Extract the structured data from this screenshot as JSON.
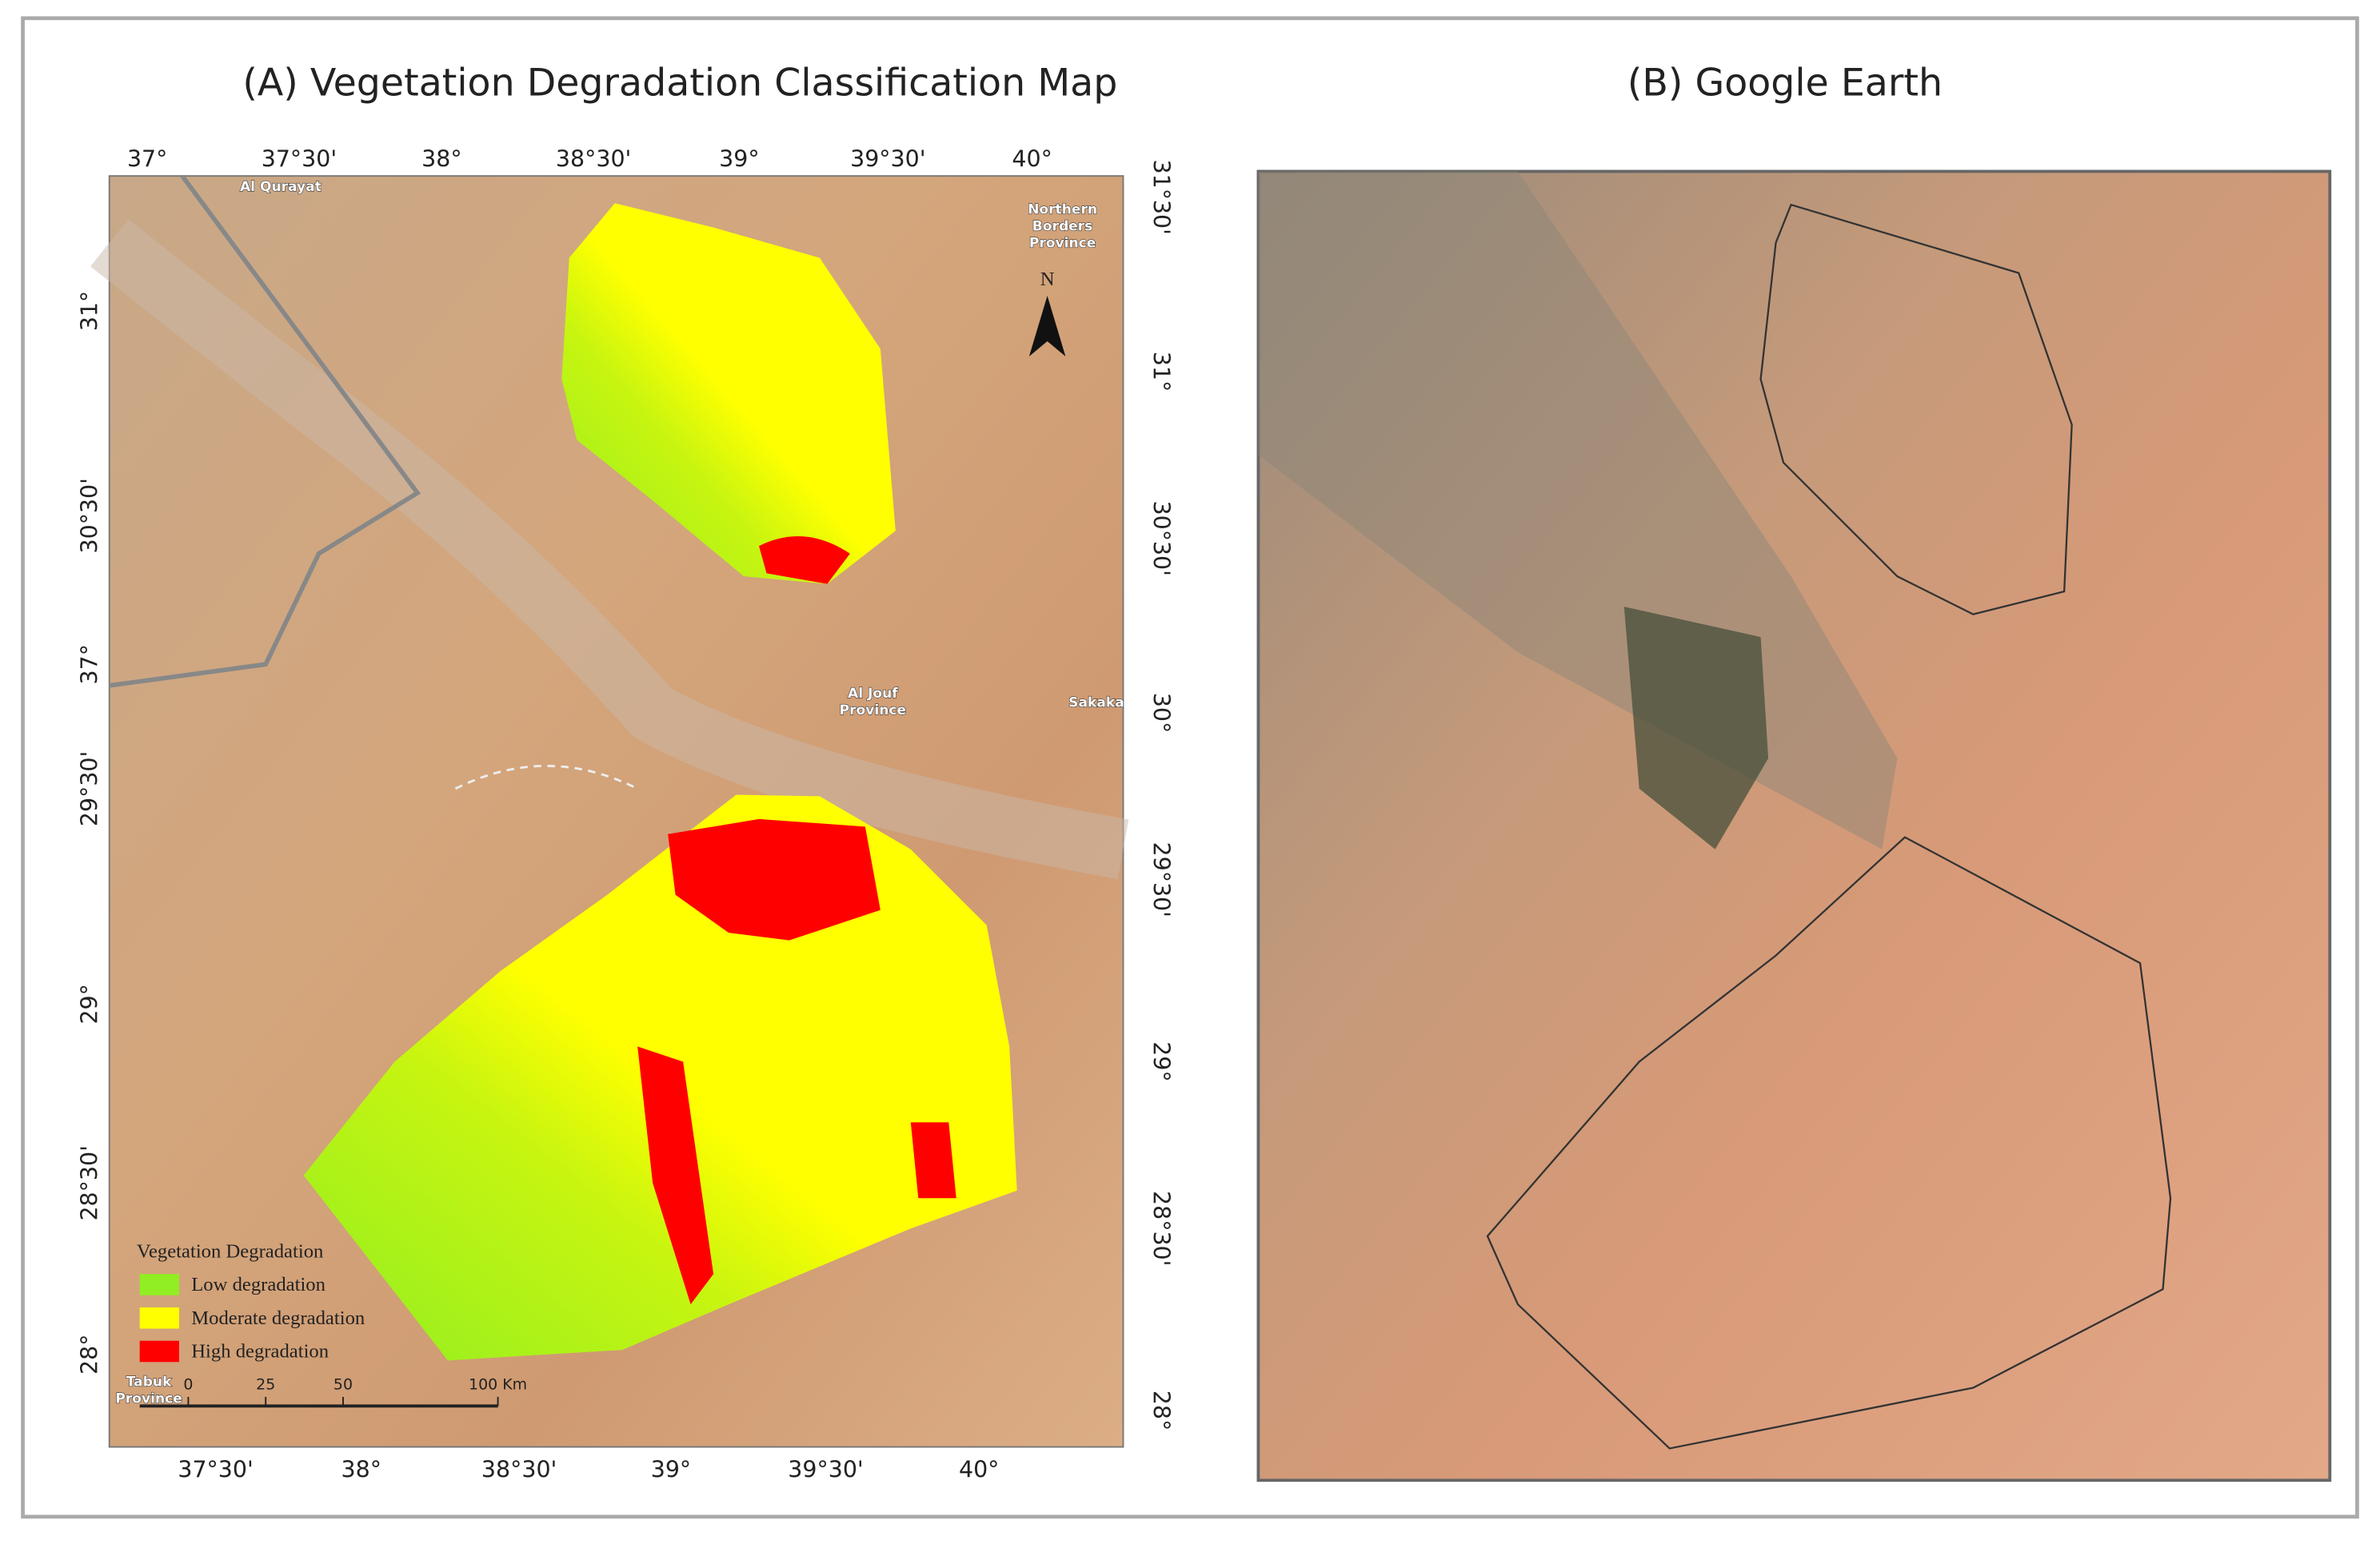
{
  "panel_a": {
    "title": "(A) Vegetation Degradation Classification Map",
    "top_ticks": [
      "37°",
      "37°30'",
      "38°",
      "38°30'",
      "39°",
      "39°30'",
      "40°"
    ],
    "bottom_ticks": [
      "37°30'",
      "38°",
      "38°30'",
      "39°",
      "39°30'",
      "40°"
    ],
    "left_ticks": [
      "31°",
      "30°30'",
      "37°",
      "29°30'",
      "29°",
      "28°30'",
      "28°"
    ],
    "right_ticks": [
      "31°30'",
      "31°",
      "30°30'",
      "30°",
      "29°30'",
      "29°",
      "28°30'",
      "28°"
    ],
    "places": [
      {
        "lines": [
          "Al Qurayat"
        ]
      },
      {
        "lines": [
          "Northern",
          "Borders",
          "Province"
        ]
      },
      {
        "lines": [
          "Al Jouf",
          "Province"
        ]
      },
      {
        "lines": [
          "Sakaka"
        ]
      },
      {
        "lines": [
          "Tabuk",
          "Province"
        ]
      }
    ],
    "north": "N",
    "legend": {
      "title": "Vegetation Degradation",
      "items": [
        {
          "label": "Low degradation",
          "color": "#90ee22"
        },
        {
          "label": "Moderate degradation",
          "color": "#ffff00"
        },
        {
          "label": "High degradation",
          "color": "#ff0000"
        }
      ]
    },
    "scale_bar": [
      "0",
      "25",
      "50",
      "100 Km"
    ]
  },
  "panel_b": {
    "title": "(B) Google Earth"
  }
}
